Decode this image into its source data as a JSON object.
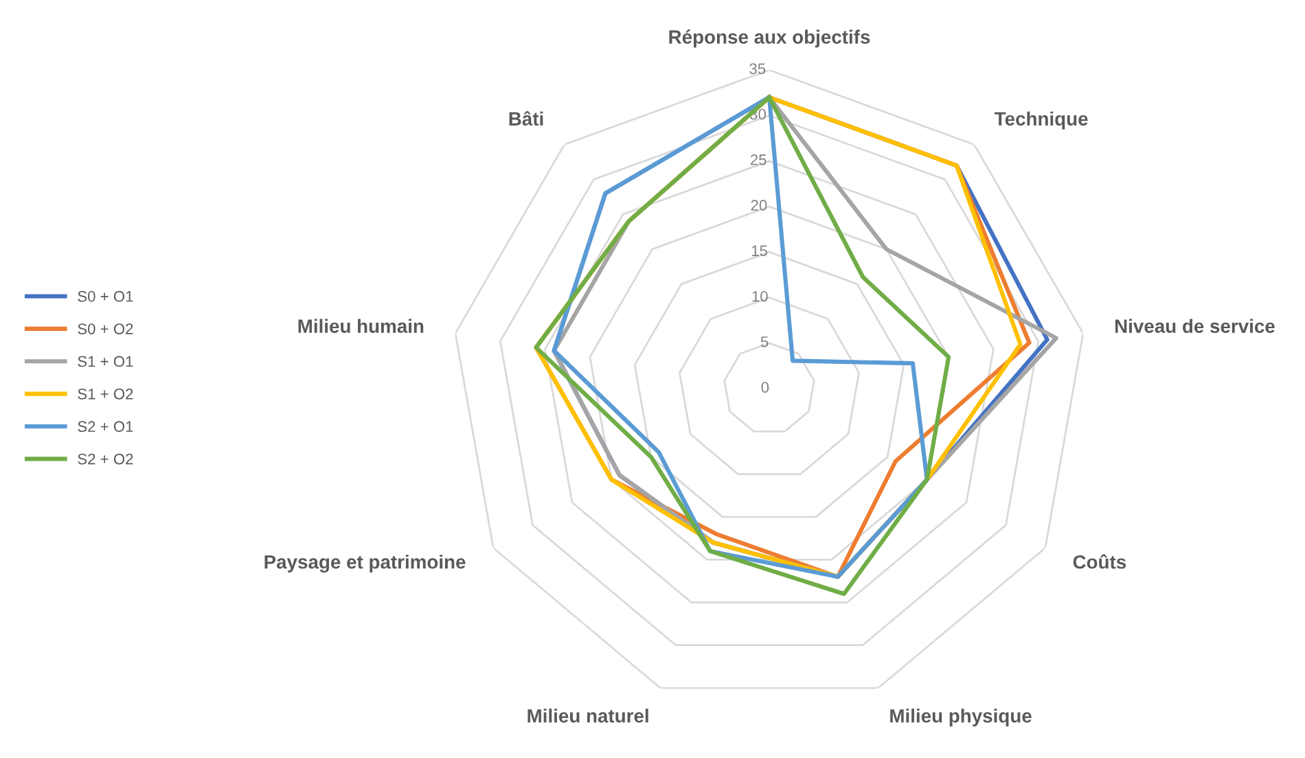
{
  "chart_data": {
    "type": "radar",
    "categories": [
      "Réponse aux objectifs",
      "Technique",
      "Niveau de service",
      "Coûts",
      "Milieu physique",
      "Milieu naturel",
      "Paysage et patrimoine",
      "Milieu humain",
      "Bâti"
    ],
    "series": [
      {
        "name": "S0 + O1",
        "color": "#4472c4",
        "values": [
          32,
          32,
          31,
          20,
          22,
          18,
          19,
          24,
          28
        ]
      },
      {
        "name": "S0 + O2",
        "color": "#ed7d31",
        "values": [
          32,
          32,
          29,
          16,
          22,
          17,
          20,
          26,
          24
        ]
      },
      {
        "name": "S1 + O1",
        "color": "#a5a5a5",
        "values": [
          32,
          20,
          32,
          20,
          22,
          18,
          19,
          24,
          24
        ]
      },
      {
        "name": "S1 + O2",
        "color": "#ffc000",
        "values": [
          32,
          32,
          28,
          20,
          22,
          18,
          20,
          26,
          24
        ]
      },
      {
        "name": "S2 + O1",
        "color": "#5b9bd5",
        "values": [
          32,
          4,
          16,
          20,
          22,
          19,
          14,
          24,
          28
        ]
      },
      {
        "name": "S2 + O2",
        "color": "#70ad47",
        "values": [
          32,
          16,
          20,
          20,
          24,
          19,
          15,
          26,
          24
        ]
      }
    ],
    "ylim": [
      0,
      35
    ],
    "yticks": [
      0,
      5,
      10,
      15,
      20,
      25,
      30,
      35
    ],
    "grid": true,
    "legend": "left"
  }
}
